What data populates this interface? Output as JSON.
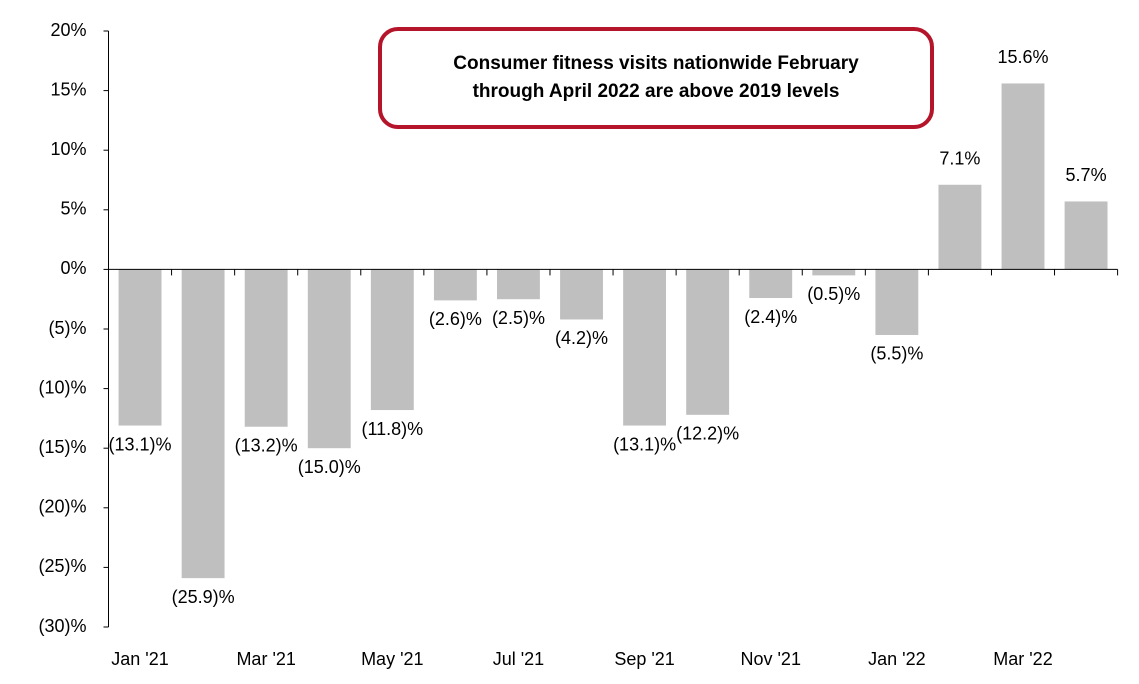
{
  "chart_data": {
    "type": "bar",
    "annotation": "Consumer fitness visits nationwide February through April 2022 are above 2019 levels",
    "categories": [
      "Jan '21",
      null,
      "Mar '21",
      null,
      "May '21",
      null,
      "Jul '21",
      null,
      "Sep '21",
      null,
      "Nov '21",
      null,
      "Jan '22",
      null,
      "Mar '22",
      null
    ],
    "values": [
      -13.1,
      -25.9,
      -13.2,
      -15.0,
      -11.8,
      -2.6,
      -2.5,
      -4.2,
      -13.1,
      -12.2,
      -2.4,
      -0.5,
      -5.5,
      7.1,
      15.6,
      5.7
    ],
    "value_labels": [
      "(13.1)%",
      "(25.9)%",
      "(13.2)%",
      "(15.0)%",
      "(11.8)%",
      "(2.6)%",
      "(2.5)%",
      "(4.2)%",
      "(13.1)%",
      "(12.2)%",
      "(2.4)%",
      "(0.5)%",
      "(5.5)%",
      "7.1%",
      "15.6%",
      "5.7%"
    ],
    "color": "#bfbfbf",
    "ylim": [
      -30,
      20
    ],
    "yticks": [
      {
        "value": -30,
        "label": "(30)%"
      },
      {
        "value": -25,
        "label": "(25)%"
      },
      {
        "value": -20,
        "label": "(20)%"
      },
      {
        "value": -15,
        "label": "(15)%"
      },
      {
        "value": -10,
        "label": "(10)%"
      },
      {
        "value": -5,
        "label": "(5)%"
      },
      {
        "value": 0,
        "label": "0%"
      },
      {
        "value": 5,
        "label": "5%"
      },
      {
        "value": 10,
        "label": "10%"
      },
      {
        "value": 15,
        "label": "15%"
      },
      {
        "value": 20,
        "label": "20%"
      }
    ],
    "grid": false
  }
}
